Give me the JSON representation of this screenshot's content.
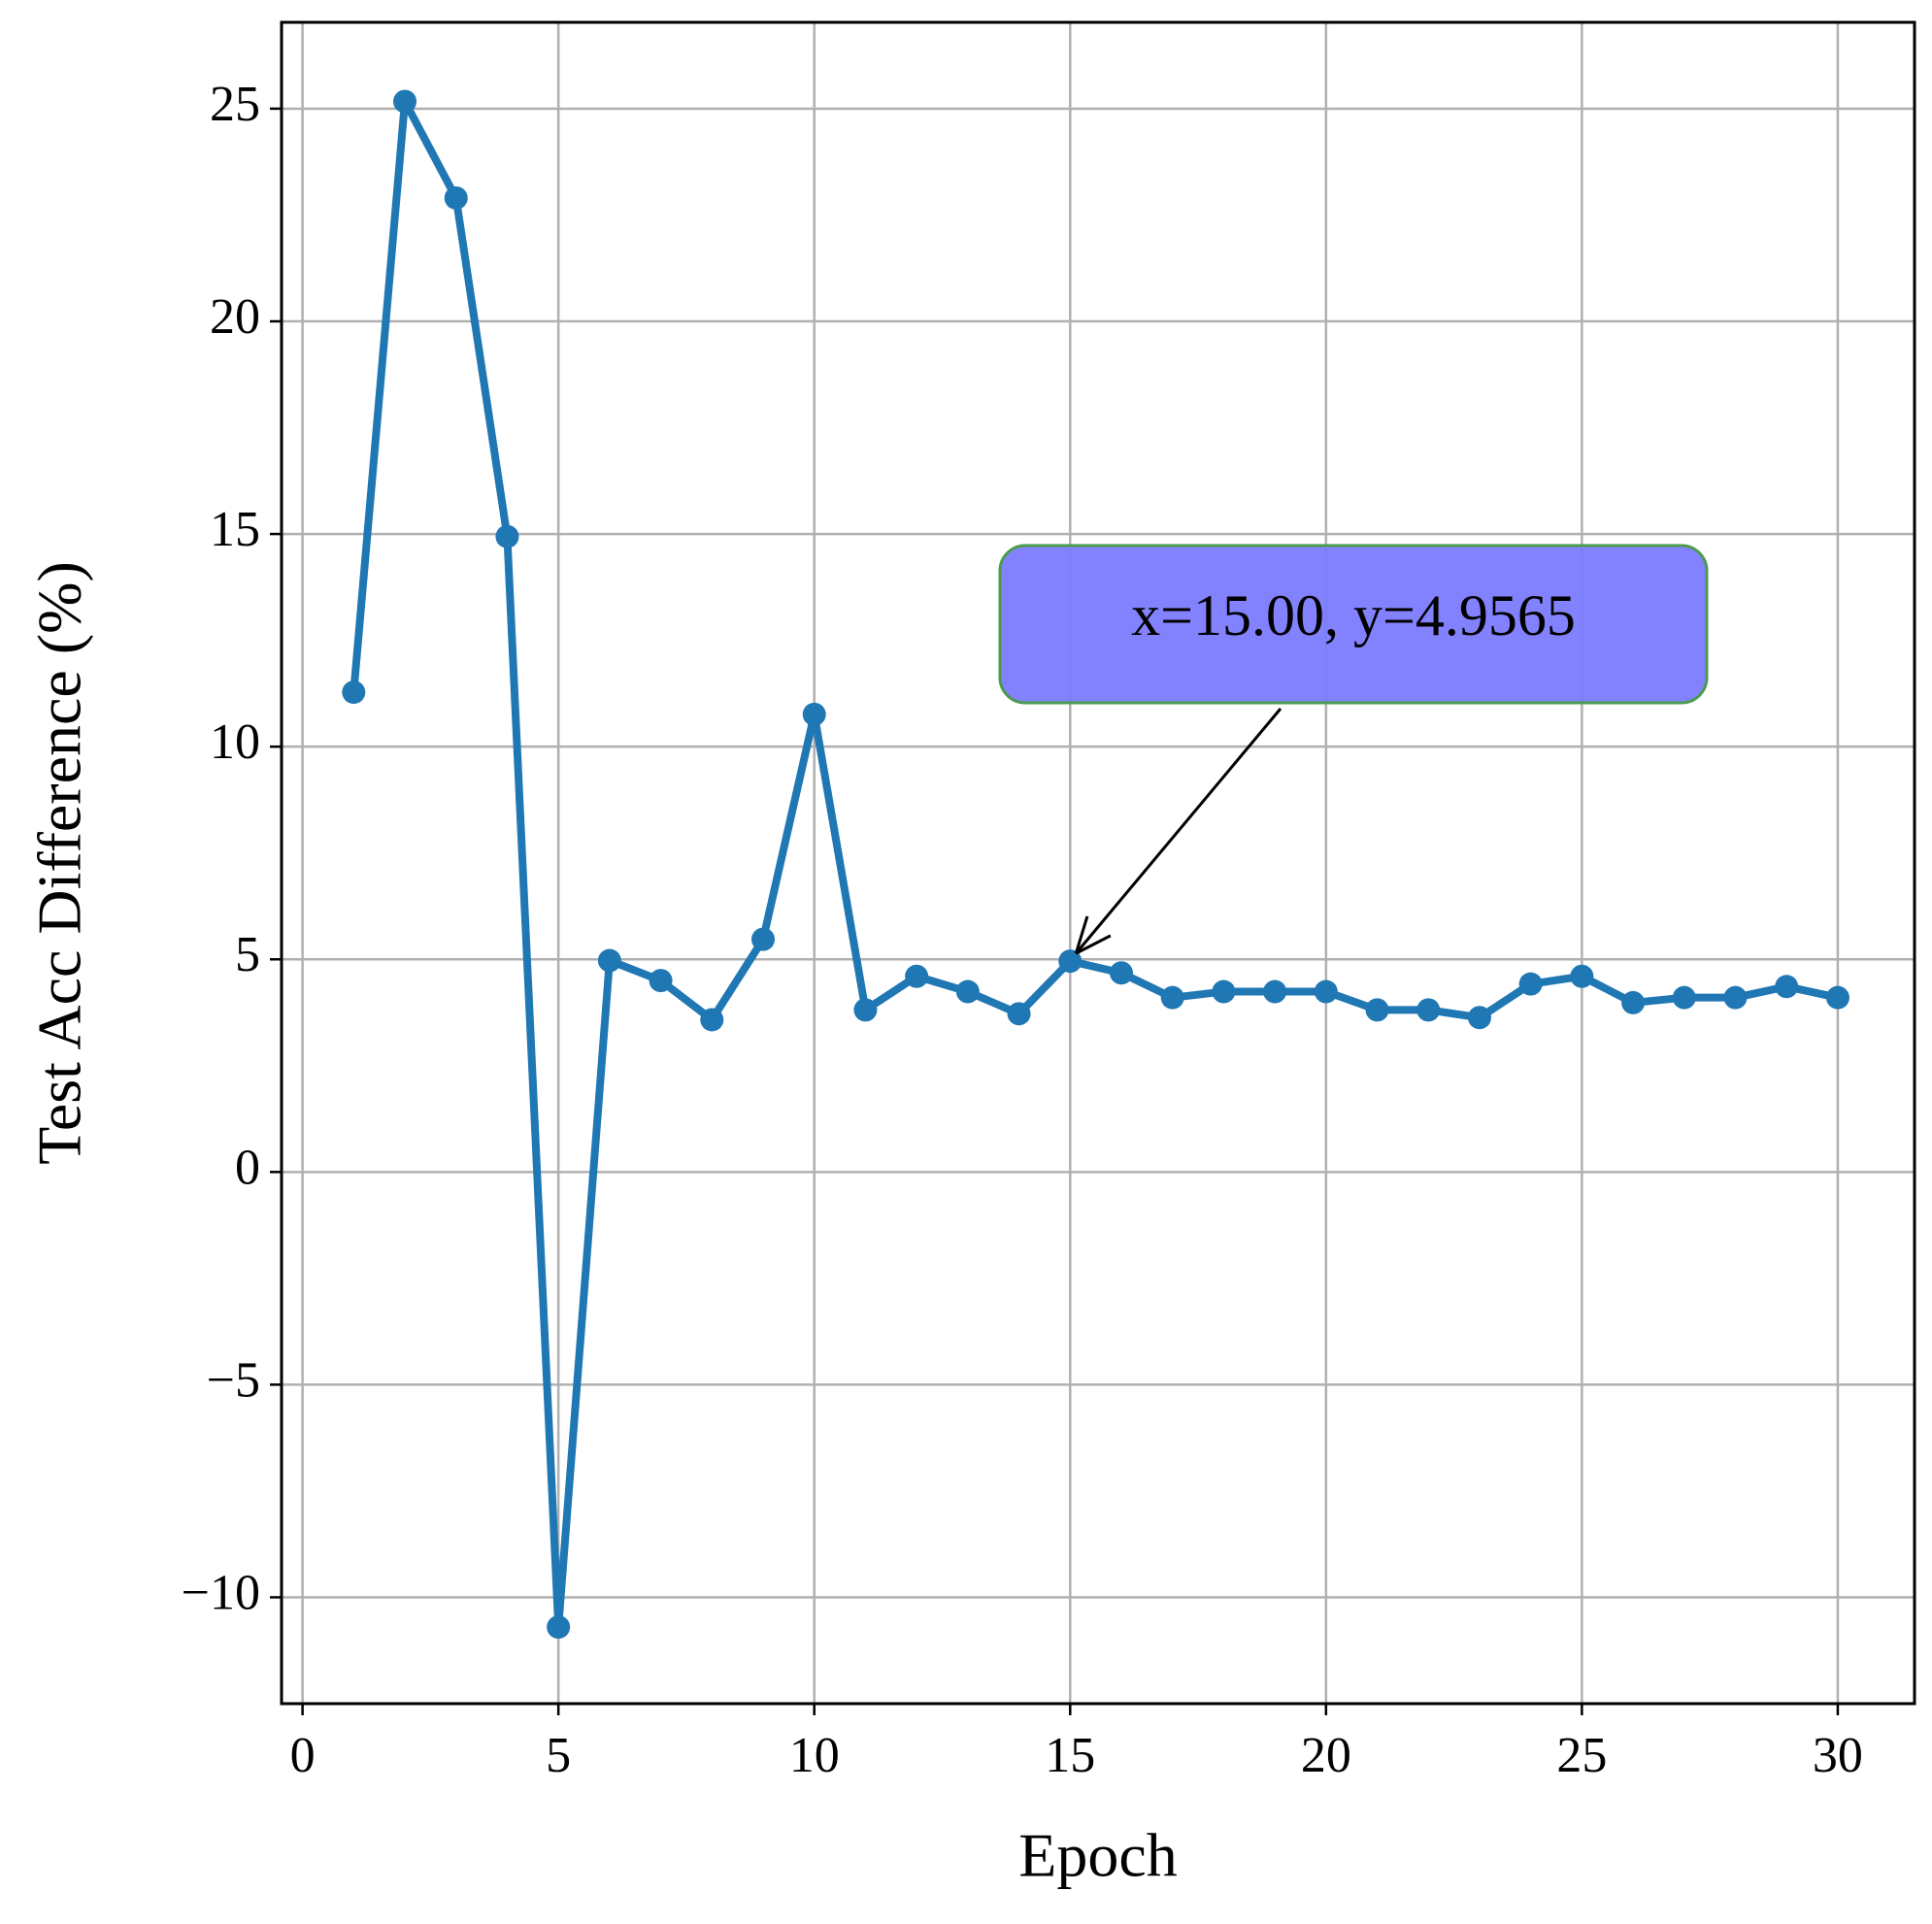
{
  "chart_data": {
    "type": "line",
    "xlabel": "Epoch",
    "ylabel": "Test Acc Difference (%)",
    "x": [
      1,
      2,
      3,
      4,
      5,
      6,
      7,
      8,
      9,
      10,
      11,
      12,
      13,
      14,
      15,
      16,
      17,
      18,
      19,
      20,
      21,
      22,
      23,
      24,
      25,
      26,
      27,
      28,
      29,
      30
    ],
    "series": [
      {
        "color": "#1f77b4",
        "values": [
          11.28,
          25.17,
          22.9,
          14.94,
          -10.7,
          4.97,
          4.5,
          3.58,
          5.47,
          10.76,
          3.81,
          4.6,
          4.24,
          3.72,
          4.9565,
          4.68,
          4.1,
          4.24,
          4.24,
          4.24,
          3.81,
          3.81,
          3.63,
          4.42,
          4.6,
          3.98,
          4.1,
          4.1,
          4.36,
          4.1
        ]
      }
    ],
    "xlim": [
      -0.41,
      31.5
    ],
    "ylim": [
      -12.5,
      27.03
    ],
    "xticks": [
      0,
      5,
      10,
      15,
      20,
      25,
      30
    ],
    "yticks": [
      {
        "value": -10,
        "label": "−10"
      },
      {
        "value": -5,
        "label": "−5"
      },
      0,
      5,
      10,
      15,
      20,
      25
    ],
    "grid": true,
    "annotation": {
      "text": "x=15.00, y=4.9565",
      "color": "#7b7bff"
    }
  }
}
